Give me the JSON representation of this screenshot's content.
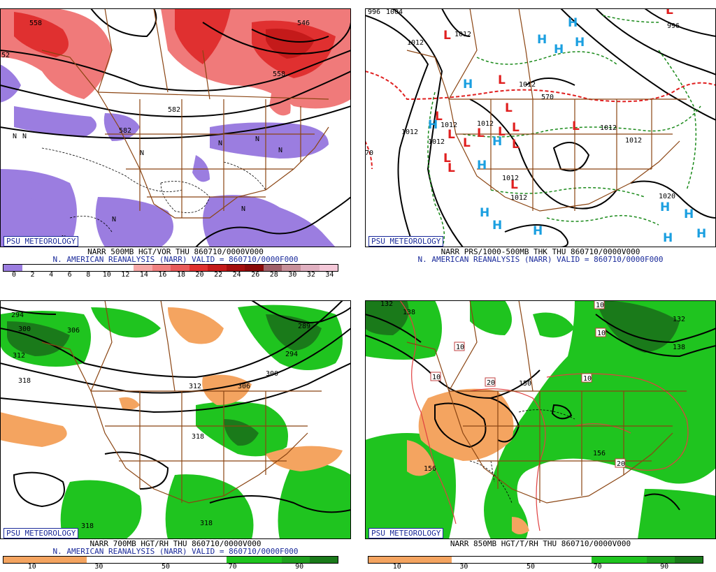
{
  "panels": {
    "p1": {
      "badge": "PSU METEOROLOGY",
      "title_line1": "NARR 500MB HGT/VOR THU 860710/0000V000",
      "title_line2": "N. AMERICAN REANALYSIS (NARR) VALID = 860710/0000F000",
      "colorbar": [
        "#9b7de0",
        "#ffffff",
        "#ffffff",
        "#ffffff",
        "#ffffff",
        "#ffffff",
        "#ffffff",
        "#f7a8a8",
        "#f08080",
        "#e85a5a",
        "#e03030",
        "#c41a1a",
        "#a40e0e",
        "#8a0a0a",
        "#a0606a",
        "#c8909a",
        "#e0b0c0",
        "#f4c8d8"
      ],
      "ticks": [
        "0",
        "2",
        "4",
        "6",
        "8",
        "10",
        "12",
        "14",
        "16",
        "18",
        "20",
        "22",
        "24",
        "26",
        "28",
        "30",
        "32",
        "34"
      ],
      "contour_labels": [
        "558",
        "546",
        "582",
        "558",
        "582",
        "52",
        "N",
        "N",
        "N",
        "N",
        "N",
        "N",
        "N",
        "N",
        "N"
      ]
    },
    "p2": {
      "badge": "PSU METEOROLOGY",
      "title_line1": "NARR PRS/1000-500MB THK THU 860710/0000V000",
      "title_line2": "N. AMERICAN REANALYSIS (NARR) VALID = 860710/0000F000",
      "contour_labels": [
        "996",
        "1004",
        "1012",
        "1012",
        "1012",
        "1012",
        "1012",
        "1012",
        "1012",
        "1020",
        "570",
        "996",
        "1012",
        "70",
        "1012",
        "1012",
        "1012"
      ],
      "high_symbol": "H",
      "low_symbol": "L",
      "high_color": "#1a9fe0",
      "low_color": "#e02020"
    },
    "p3": {
      "badge": "PSU METEOROLOGY",
      "title_line1": "NARR 700MB HGT/RH THU 860710/0000V000",
      "title_line2": "N. AMERICAN REANALYSIS (NARR) VALID = 860710/0000F000",
      "colorbar": [
        "#f4a460",
        "#f4a460",
        "#f4a460",
        "#ffffff",
        "#ffffff",
        "#ffffff",
        "#ffffff",
        "#ffffff",
        "#1fc41f",
        "#1fc41f",
        "#1fa01f",
        "#1a7a1a"
      ],
      "ticks": [
        "10",
        "30",
        "50",
        "70",
        "90"
      ],
      "contour_labels": [
        "294",
        "300",
        "306",
        "312",
        "318",
        "289",
        "294",
        "300",
        "312",
        "306",
        "318",
        "318",
        "318"
      ]
    },
    "p4": {
      "badge": "PSU METEOROLOGY",
      "title_line1": "NARR 850MB HGT/T/RH THU 860710/0000V000",
      "title_line2": "",
      "colorbar": [
        "#f4a460",
        "#f4a460",
        "#f4a460",
        "#ffffff",
        "#ffffff",
        "#ffffff",
        "#ffffff",
        "#ffffff",
        "#1fc41f",
        "#1fc41f",
        "#1fa01f",
        "#1a7a1a"
      ],
      "ticks": [
        "10",
        "30",
        "50",
        "70",
        "90"
      ],
      "contour_labels": [
        "132",
        "138",
        "10",
        "10",
        "20",
        "150",
        "10",
        "156",
        "156",
        "20",
        "10",
        "132",
        "138",
        "10"
      ]
    }
  }
}
